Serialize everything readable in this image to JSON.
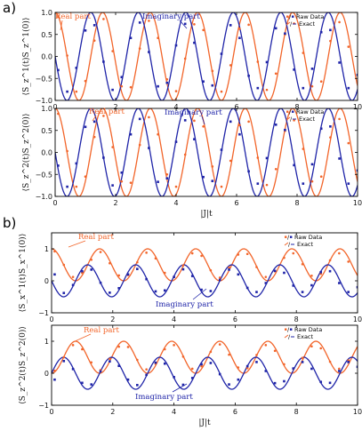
{
  "colors": {
    "real": "#f2652a",
    "imag": "#1f24a8",
    "axis": "#000000"
  },
  "panel_labels": [
    "a)",
    "b)"
  ],
  "legend": {
    "raw": "Raw Data",
    "exact": "Exact"
  },
  "chart_data": [
    {
      "type": "line",
      "group": "a",
      "ylabel": "⟨S_z^1(t)S_z^1(0)⟩",
      "xlim": [
        0,
        10
      ],
      "ylim": [
        -1.0,
        1.0
      ],
      "xticks": [
        0,
        2,
        4,
        6,
        8,
        10
      ],
      "yticks": [
        -1.0,
        -0.5,
        0.0,
        0.5,
        1.0
      ],
      "ytick_labels": [
        "−1.0",
        "−0.5",
        "0.0",
        "0.5",
        "1.0"
      ],
      "show_xticklabels": true,
      "annotations": {
        "real": "Real part",
        "imag": "Imaginary part"
      },
      "series": [
        {
          "name": "Real part",
          "kind": "exact",
          "function": "cos(4.0 t)",
          "color": "real"
        },
        {
          "name": "Imaginary part",
          "kind": "exact",
          "function": "-sin(4.0 t)",
          "color": "imag"
        },
        {
          "name": "Real part",
          "kind": "raw",
          "color": "real",
          "x": [
            0.1,
            0.4,
            0.7,
            1.0,
            1.3,
            1.6,
            1.9,
            2.2,
            2.5,
            2.8,
            3.1,
            3.4,
            3.7,
            4.0,
            4.3,
            4.6,
            4.9,
            5.2,
            5.5,
            5.8,
            6.1,
            6.4,
            6.7,
            7.0,
            7.3,
            7.6,
            7.9,
            8.2,
            8.5,
            8.8,
            9.1,
            9.4,
            9.7,
            10.0
          ],
          "y": [
            0.9,
            0.02,
            -0.8,
            -0.56,
            0.36,
            0.85,
            0.12,
            -0.68,
            -0.7,
            0.18,
            0.81,
            0.42,
            -0.52,
            -0.79,
            -0.05,
            0.73,
            0.6,
            -0.33,
            -0.8,
            -0.2,
            0.63,
            0.72,
            -0.12,
            -0.76,
            -0.39,
            0.5,
            0.75,
            0.08,
            -0.68,
            -0.57,
            0.35,
            0.78,
            0.22,
            -0.6
          ]
        },
        {
          "name": "Imaginary part",
          "kind": "raw",
          "color": "imag",
          "x": [
            0.1,
            0.4,
            0.7,
            1.0,
            1.3,
            1.6,
            1.9,
            2.2,
            2.5,
            2.8,
            3.1,
            3.4,
            3.7,
            4.0,
            4.3,
            4.6,
            4.9,
            5.2,
            5.5,
            5.8,
            6.1,
            6.4,
            6.7,
            7.0,
            7.3,
            7.6,
            7.9,
            8.2,
            8.5,
            8.8,
            9.1,
            9.4,
            9.7,
            10.0
          ],
          "y": [
            -0.31,
            -0.8,
            -0.26,
            0.59,
            0.71,
            -0.12,
            -0.76,
            -0.47,
            0.42,
            0.77,
            0.1,
            -0.68,
            -0.6,
            0.25,
            0.74,
            0.31,
            -0.57,
            -0.66,
            0.06,
            0.71,
            0.42,
            -0.44,
            -0.72,
            -0.13,
            0.64,
            0.52,
            -0.3,
            -0.72,
            -0.28,
            0.55,
            0.6,
            -0.14,
            -0.72,
            -0.42
          ]
        }
      ]
    },
    {
      "type": "line",
      "group": "a",
      "ylabel": "⟨S_z^2(t)S_z^2(0)⟩",
      "xlabel": "|J|t",
      "xlim": [
        0,
        10
      ],
      "ylim": [
        -1.0,
        1.0
      ],
      "xticks": [
        0,
        2,
        4,
        6,
        8,
        10
      ],
      "yticks": [
        -1.0,
        -0.5,
        0.0,
        0.5,
        1.0
      ],
      "ytick_labels": [
        "−1.0",
        "−0.5",
        "0.0",
        "0.5",
        "1.0"
      ],
      "xtick_labels": [
        "0",
        "2",
        "4",
        "6",
        "8",
        "10"
      ],
      "show_xticklabels": true,
      "annotations": {
        "real": "Real part",
        "imag": "Imaginary part"
      },
      "series": [
        {
          "name": "Real part",
          "kind": "exact",
          "function": "cos(4.0 t)",
          "color": "real"
        },
        {
          "name": "Imaginary part",
          "kind": "exact",
          "function": "-sin(4.0 t)",
          "color": "imag"
        },
        {
          "name": "Real part",
          "kind": "raw",
          "color": "real",
          "x": [
            0.1,
            0.4,
            0.7,
            1.0,
            1.3,
            1.6,
            1.9,
            2.2,
            2.5,
            2.8,
            3.1,
            3.4,
            3.7,
            4.0,
            4.3,
            4.6,
            4.9,
            5.2,
            5.5,
            5.8,
            6.1,
            6.4,
            6.7,
            7.0,
            7.3,
            7.6,
            7.9,
            8.2,
            8.5,
            8.8,
            9.1,
            9.4,
            9.7,
            10.0
          ],
          "y": [
            0.88,
            0.03,
            -0.78,
            -0.55,
            0.35,
            0.83,
            0.12,
            -0.66,
            -0.69,
            0.17,
            0.8,
            0.41,
            -0.5,
            -0.78,
            -0.05,
            0.72,
            0.59,
            -0.32,
            -0.78,
            -0.19,
            0.62,
            0.7,
            -0.12,
            -0.74,
            -0.38,
            0.49,
            0.73,
            0.08,
            -0.66,
            -0.55,
            0.34,
            0.76,
            0.21,
            -0.58
          ]
        },
        {
          "name": "Imaginary part",
          "kind": "raw",
          "color": "imag",
          "x": [
            0.1,
            0.4,
            0.7,
            1.0,
            1.3,
            1.6,
            1.9,
            2.2,
            2.5,
            2.8,
            3.1,
            3.4,
            3.7,
            4.0,
            4.3,
            4.6,
            4.9,
            5.2,
            5.5,
            5.8,
            6.1,
            6.4,
            6.7,
            7.0,
            7.3,
            7.6,
            7.9,
            8.2,
            8.5,
            8.8,
            9.1,
            9.4,
            9.7,
            10.0
          ],
          "y": [
            -0.3,
            -0.78,
            -0.25,
            0.58,
            0.7,
            -0.12,
            -0.75,
            -0.46,
            0.41,
            0.76,
            0.1,
            -0.67,
            -0.59,
            0.24,
            0.73,
            0.3,
            -0.56,
            -0.65,
            0.06,
            0.7,
            0.41,
            -0.43,
            -0.71,
            -0.13,
            0.63,
            0.51,
            -0.29,
            -0.71,
            -0.27,
            0.54,
            0.59,
            -0.14,
            -0.71,
            -0.41
          ]
        }
      ]
    },
    {
      "type": "line",
      "group": "b",
      "ylabel": "⟨S_x^1(t)S_x^1(0)⟩",
      "xlim": [
        0,
        10
      ],
      "ylim": [
        -1.0,
        1.5
      ],
      "xticks": [
        0,
        2,
        4,
        6,
        8,
        10
      ],
      "yticks": [
        -1,
        0,
        1
      ],
      "ytick_labels": [
        "−1",
        "0",
        "1"
      ],
      "xtick_labels": [
        "0",
        "2",
        "4",
        "6",
        "8",
        "10"
      ],
      "show_xticklabels": true,
      "annotations": {
        "real": "Real part",
        "imag": "Imaginary part"
      },
      "series": [
        {
          "name": "Real part",
          "kind": "exact",
          "function": "0.5 + 0.5 cos(4.0 t)",
          "color": "real"
        },
        {
          "name": "Imaginary part",
          "kind": "exact",
          "function": "-0.5 sin(4.0 t)",
          "color": "imag"
        },
        {
          "name": "Real part",
          "kind": "raw",
          "color": "real",
          "x": [
            0.1,
            0.4,
            0.7,
            1.0,
            1.3,
            1.6,
            1.9,
            2.2,
            2.5,
            2.8,
            3.1,
            3.4,
            3.7,
            4.0,
            4.3,
            4.6,
            4.9,
            5.2,
            5.5,
            5.8,
            6.1,
            6.4,
            6.7,
            7.0,
            7.3,
            7.6,
            7.9,
            8.2,
            8.5,
            8.8,
            9.1,
            9.4,
            9.7,
            10.0
          ],
          "y": [
            0.92,
            0.5,
            0.12,
            0.25,
            0.66,
            0.9,
            0.55,
            0.17,
            0.18,
            0.58,
            0.88,
            0.7,
            0.25,
            0.12,
            0.48,
            0.86,
            0.78,
            0.33,
            0.1,
            0.42,
            0.82,
            0.84,
            0.43,
            0.12,
            0.3,
            0.72,
            0.86,
            0.52,
            0.16,
            0.22,
            0.64,
            0.86,
            0.6,
            0.2
          ]
        },
        {
          "name": "Imaginary part",
          "kind": "raw",
          "color": "imag",
          "x": [
            0.1,
            0.4,
            0.7,
            1.0,
            1.3,
            1.6,
            1.9,
            2.2,
            2.5,
            2.8,
            3.1,
            3.4,
            3.7,
            4.0,
            4.3,
            4.6,
            4.9,
            5.2,
            5.5,
            5.8,
            6.1,
            6.4,
            6.7,
            7.0,
            7.3,
            7.6,
            7.9,
            8.2,
            8.5,
            8.8,
            9.1,
            9.4,
            9.7,
            10.0
          ],
          "y": [
            0.2,
            -0.38,
            -0.13,
            0.3,
            0.35,
            -0.06,
            -0.37,
            -0.23,
            0.2,
            0.37,
            0.05,
            -0.33,
            -0.3,
            0.12,
            0.36,
            0.15,
            -0.28,
            -0.32,
            0.03,
            0.35,
            0.2,
            -0.22,
            -0.35,
            -0.07,
            0.31,
            0.25,
            -0.15,
            -0.35,
            -0.14,
            0.27,
            0.3,
            -0.07,
            -0.35,
            -0.2
          ]
        }
      ]
    },
    {
      "type": "line",
      "group": "b",
      "ylabel": "⟨S_z^2(t)S_z^2(0)⟩",
      "xlabel": "|J|t",
      "xlim": [
        0,
        10
      ],
      "ylim": [
        -1.0,
        1.5
      ],
      "xticks": [
        0,
        2,
        4,
        6,
        8,
        10
      ],
      "yticks": [
        -1,
        0,
        1
      ],
      "ytick_labels": [
        "−1",
        "0",
        "1"
      ],
      "xtick_labels": [
        "0",
        "2",
        "4",
        "6",
        "8",
        "10"
      ],
      "show_xticklabels": true,
      "annotations": {
        "real": "Real part",
        "imag": "Imaginary part"
      },
      "series": [
        {
          "name": "Real part",
          "kind": "exact",
          "function": "0.5 - 0.5 cos(4.0 t)",
          "color": "real"
        },
        {
          "name": "Imaginary part",
          "kind": "exact",
          "function": "0.5 sin(4.0 t)",
          "color": "imag"
        },
        {
          "name": "Real part",
          "kind": "raw",
          "color": "real",
          "x": [
            0.1,
            0.4,
            0.7,
            1.0,
            1.3,
            1.6,
            1.9,
            2.2,
            2.5,
            2.8,
            3.1,
            3.4,
            3.7,
            4.0,
            4.3,
            4.6,
            4.9,
            5.2,
            5.5,
            5.8,
            6.1,
            6.4,
            6.7,
            7.0,
            7.3,
            7.6,
            7.9,
            8.2,
            8.5,
            8.8,
            9.1,
            9.4,
            9.7,
            10.0
          ],
          "y": [
            0.08,
            0.5,
            0.88,
            0.75,
            0.34,
            0.1,
            0.45,
            0.83,
            0.82,
            0.42,
            0.12,
            0.3,
            0.75,
            0.88,
            0.52,
            0.14,
            0.22,
            0.67,
            0.9,
            0.58,
            0.18,
            0.16,
            0.57,
            0.88,
            0.7,
            0.28,
            0.14,
            0.48,
            0.84,
            0.78,
            0.36,
            0.14,
            0.4,
            0.8
          ]
        },
        {
          "name": "Imaginary part",
          "kind": "raw",
          "color": "imag",
          "x": [
            0.1,
            0.4,
            0.7,
            1.0,
            1.3,
            1.6,
            1.9,
            2.2,
            2.5,
            2.8,
            3.1,
            3.4,
            3.7,
            4.0,
            4.3,
            4.6,
            4.9,
            5.2,
            5.5,
            5.8,
            6.1,
            6.4,
            6.7,
            7.0,
            7.3,
            7.6,
            7.9,
            8.2,
            8.5,
            8.8,
            9.1,
            9.4,
            9.7,
            10.0
          ],
          "y": [
            -0.2,
            0.38,
            0.13,
            -0.3,
            -0.35,
            0.06,
            0.37,
            0.23,
            -0.2,
            -0.37,
            -0.05,
            0.33,
            0.3,
            -0.12,
            -0.36,
            -0.15,
            0.28,
            0.32,
            -0.03,
            -0.35,
            -0.2,
            0.22,
            0.35,
            0.07,
            -0.31,
            -0.25,
            0.15,
            0.35,
            0.14,
            -0.27,
            -0.3,
            0.07,
            0.35,
            0.2
          ]
        }
      ]
    }
  ]
}
